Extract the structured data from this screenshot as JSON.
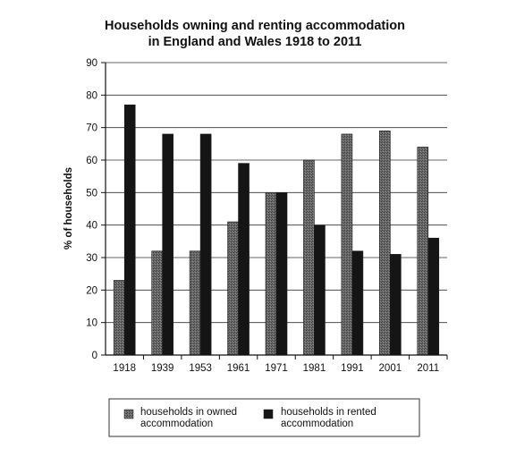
{
  "chart_data": {
    "type": "bar",
    "title_lines": [
      "Households owning and renting accommodation",
      "in England and Wales 1918 to 2011"
    ],
    "ylabel": "% of households",
    "xlabel": "",
    "ylim": [
      0,
      90
    ],
    "yticks": [
      0,
      10,
      20,
      30,
      40,
      50,
      60,
      70,
      80,
      90
    ],
    "grid": true,
    "legend_position": "bottom",
    "categories": [
      "1918",
      "1939",
      "1953",
      "1961",
      "1971",
      "1981",
      "1991",
      "2001",
      "2011"
    ],
    "series": [
      {
        "name": "households in owned accommodation",
        "legend_lines": [
          "households in owned",
          "accommodation"
        ],
        "color": "#5a5a5a",
        "values": [
          23,
          32,
          32,
          41,
          50,
          60,
          68,
          69,
          64
        ]
      },
      {
        "name": "households in rented accommodation",
        "legend_lines": [
          "households in rented",
          "accommodation"
        ],
        "color": "#151515",
        "values": [
          77,
          68,
          68,
          59,
          50,
          40,
          32,
          31,
          36
        ]
      }
    ]
  }
}
